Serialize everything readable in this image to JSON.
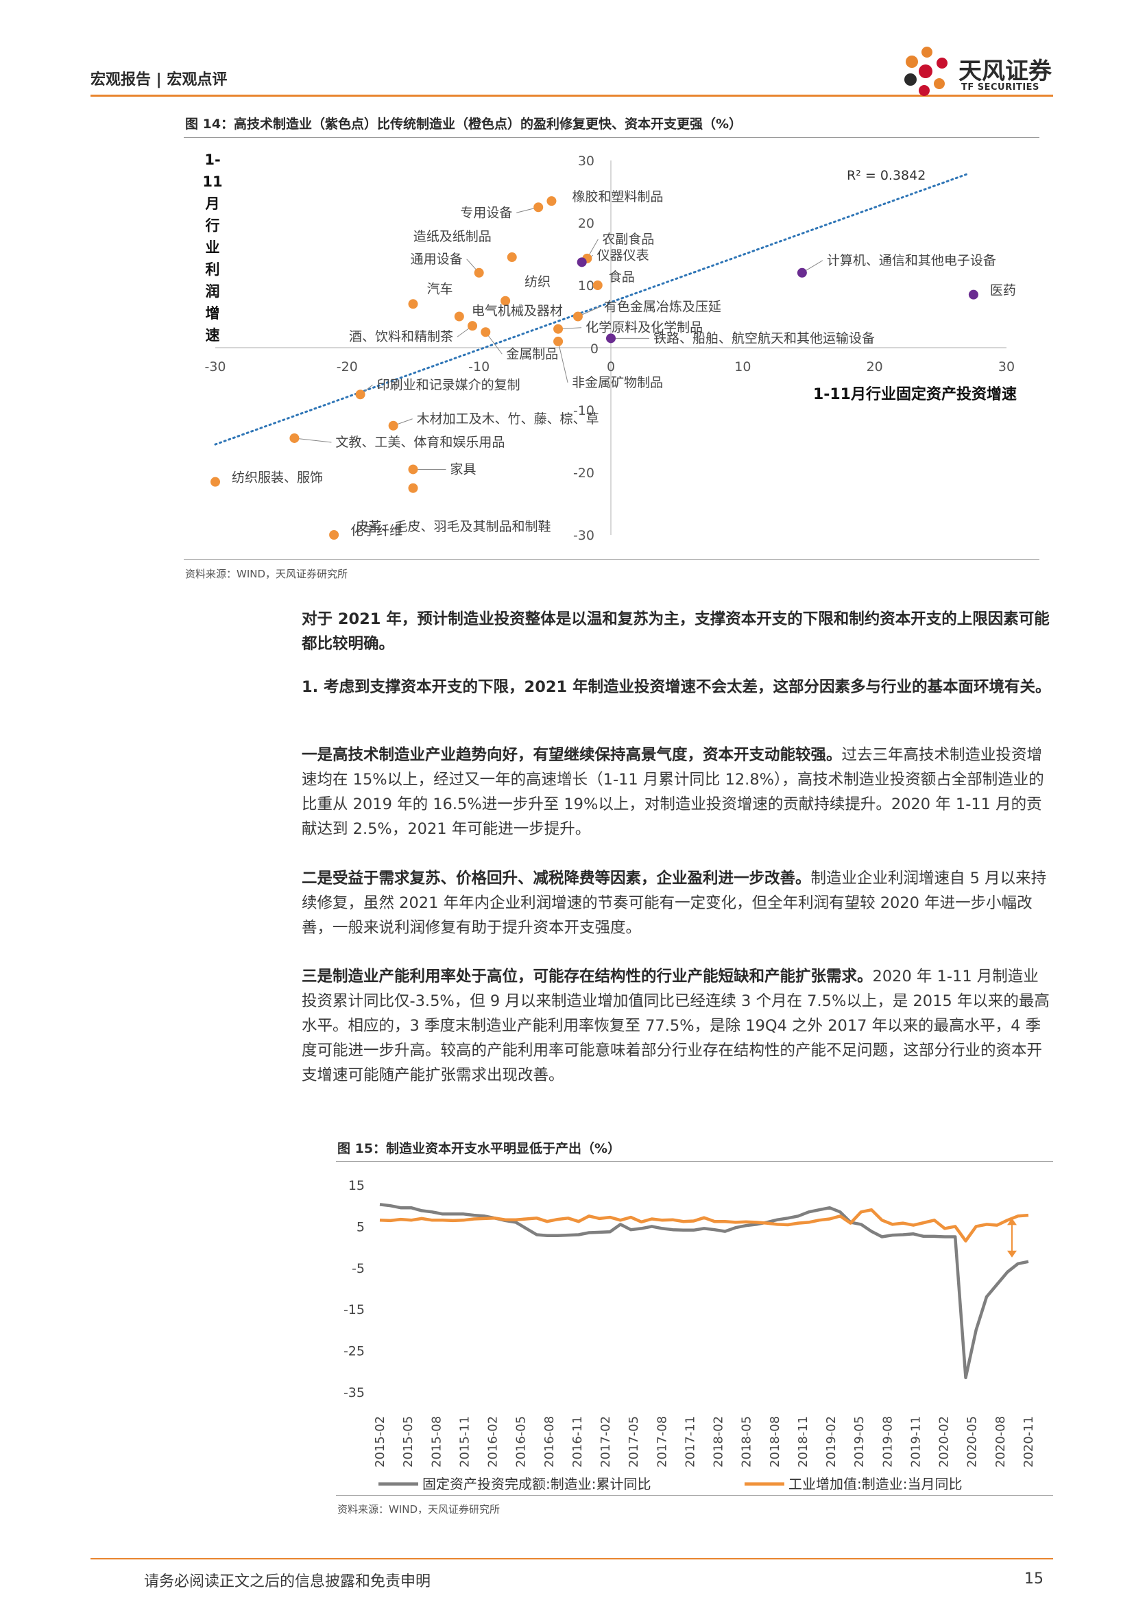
{
  "header": {
    "left": "宏观报告 | 宏观点评",
    "logo_name": "天风证券",
    "logo_sub": "TF SECURITIES"
  },
  "fig14": {
    "title": "图 14：高技术制造业（紫色点）比传统制造业（橙色点）的盈利修复更快、资本开支更强（%）",
    "source": "资料来源：WIND，天风证券研究所",
    "chart_data": {
      "type": "scatter",
      "xlabel": "1-11月行业固定资产投资增速",
      "ylabel": "1-11月行业利润增速",
      "xlim": [
        -30,
        30
      ],
      "ylim": [
        -30,
        30
      ],
      "x_ticks": [
        "-30",
        "-20",
        "-10",
        "0",
        "10",
        "20",
        "30"
      ],
      "y_ticks": [
        "30",
        "20",
        "10",
        "0",
        "-10",
        "-20",
        "-30"
      ],
      "r2_label": "R² = 0.3842",
      "trendline": {
        "x": [
          -30,
          27
        ],
        "y": [
          -15.5,
          27.8
        ]
      },
      "colors": {
        "traditional": "#f0923a",
        "high_tech": "#6a2c91",
        "trend": "#2e75b6"
      },
      "points": [
        {
          "name": "橡胶和塑料制品",
          "x": -4.5,
          "y": 23.5,
          "group": "traditional"
        },
        {
          "name": "专用设备",
          "x": -5.5,
          "y": 22.5,
          "group": "traditional"
        },
        {
          "name": "造纸及纸制品",
          "x": -7.5,
          "y": 14.5,
          "group": "traditional"
        },
        {
          "name": "农副食品",
          "x": -1.8,
          "y": 14.3,
          "group": "traditional"
        },
        {
          "name": "仪器仪表",
          "x": -2.2,
          "y": 13.7,
          "group": "high_tech"
        },
        {
          "name": "通用设备",
          "x": -10,
          "y": 12,
          "group": "traditional"
        },
        {
          "name": "食品",
          "x": -1,
          "y": 10,
          "group": "traditional"
        },
        {
          "name": "纺织",
          "x": -8,
          "y": 7.5,
          "group": "traditional"
        },
        {
          "name": "汽车",
          "x": -15,
          "y": 7,
          "group": "traditional"
        },
        {
          "name": "有色金属冶炼及压延",
          "x": -2.5,
          "y": 5,
          "group": "traditional"
        },
        {
          "name": "电气机械及器材",
          "x": -11.5,
          "y": 5,
          "group": "traditional"
        },
        {
          "name": "酒、饮料和精制茶",
          "x": -10.5,
          "y": 3.5,
          "group": "traditional"
        },
        {
          "name": "化学原料及化学制品",
          "x": -4,
          "y": 3,
          "group": "traditional"
        },
        {
          "name": "金属制品",
          "x": -9.5,
          "y": 2.5,
          "group": "traditional"
        },
        {
          "name": "铁路、船舶、航空航天和其他运输设备",
          "x": 0,
          "y": 1.5,
          "group": "high_tech"
        },
        {
          "name": "计算机、通信和其他电子设备",
          "x": 14.5,
          "y": 12,
          "group": "high_tech"
        },
        {
          "name": "医药",
          "x": 27.5,
          "y": 8.5,
          "group": "high_tech"
        },
        {
          "name": "非金属矿物制品",
          "x": -4,
          "y": 1,
          "group": "traditional"
        },
        {
          "name": "印刷业和记录媒介的复制",
          "x": -19,
          "y": -7.5,
          "group": "traditional"
        },
        {
          "name": "木材加工及木、竹、藤、棕、草",
          "x": -16.5,
          "y": -12.5,
          "group": "traditional"
        },
        {
          "name": "文教、工美、体育和娱乐用品",
          "x": -24,
          "y": -14.5,
          "group": "traditional"
        },
        {
          "name": "家具",
          "x": -15,
          "y": -19.5,
          "group": "traditional"
        },
        {
          "name": "纺织服装、服饰",
          "x": -30,
          "y": -21.5,
          "group": "traditional"
        },
        {
          "name": "皮革、毛皮、羽毛及其制品和制鞋",
          "x": -15,
          "y": -22.5,
          "group": "traditional"
        },
        {
          "name": "化学纤维",
          "x": -21,
          "y": -30,
          "group": "traditional"
        }
      ]
    }
  },
  "paragraphs": {
    "p1": "对于 2021 年，预计制造业投资整体是以温和复苏为主，支撑资本开支的下限和制约资本开支的上限因素可能都比较明确。",
    "p2": "1. 考虑到支撑资本开支的下限，2021 年制造业投资增速不会太差，这部分因素多与行业的基本面环境有关。",
    "p3_bold": "一是高技术制造业产业趋势向好，有望继续保持高景气度，资本开支动能较强。",
    "p3_rest": "过去三年高技术制造业投资增速均在 15%以上，经过又一年的高速增长（1-11 月累计同比 12.8%），高技术制造业投资额占全部制造业的比重从 2019 年的 16.5%进一步升至 19%以上，对制造业投资增速的贡献持续提升。2020 年 1-11 月的贡献达到 2.5%，2021 年可能进一步提升。",
    "p4_bold": "二是受益于需求复苏、价格回升、减税降费等因素，企业盈利进一步改善。",
    "p4_rest": "制造业企业利润增速自 5 月以来持续修复，虽然 2021 年年内企业利润增速的节奏可能有一定变化，但全年利润有望较 2020 年进一步小幅改善，一般来说利润修复有助于提升资本开支强度。",
    "p5_bold": "三是制造业产能利用率处于高位，可能存在结构性的行业产能短缺和产能扩张需求。",
    "p5_rest": "2020 年 1-11 月制造业投资累计同比仅-3.5%，但 9 月以来制造业增加值同比已经连续 3 个月在 7.5%以上，是 2015 年以来的最高水平。相应的，3 季度末制造业产能利用率恢复至 77.5%，是除 19Q4 之外 2017 年以来的最高水平，4 季度可能进一步升高。较高的产能利用率可能意味着部分行业存在结构性的产能不足问题，这部分行业的资本开支增速可能随产能扩张需求出现改善。"
  },
  "fig15": {
    "title": "图 15：制造业资本开支水平明显低于产出（%）",
    "source": "资料来源：WIND，天风证券研究所",
    "chart_data": {
      "type": "line",
      "ylim": [
        -35,
        15
      ],
      "y_ticks": [
        "15",
        "5",
        "-5",
        "-15",
        "-25",
        "-35"
      ],
      "x_tick_labels": [
        "2015-02",
        "2015-05",
        "2015-08",
        "2015-11",
        "2016-02",
        "2016-05",
        "2016-08",
        "2016-11",
        "2017-02",
        "2017-05",
        "2017-08",
        "2017-11",
        "2018-02",
        "2018-05",
        "2018-08",
        "2018-11",
        "2019-02",
        "2019-05",
        "2019-08",
        "2019-11",
        "2020-02",
        "2020-05",
        "2020-08",
        "2020-11"
      ],
      "series": [
        {
          "name": "固定资产投资完成额:制造业:累计同比",
          "color": "#7f7f7f",
          "values": [
            10.3,
            10.0,
            9.5,
            9.5,
            8.8,
            8.5,
            8.0,
            8.0,
            8.0,
            7.7,
            7.5,
            7.0,
            6.4,
            6.0,
            4.5,
            3.0,
            2.8,
            2.8,
            2.9,
            3.0,
            3.5,
            3.6,
            3.7,
            5.5,
            4.2,
            4.5,
            5.0,
            4.5,
            4.2,
            4.1,
            4.1,
            4.5,
            4.2,
            3.8,
            4.7,
            5.2,
            5.5,
            6.0,
            6.6,
            7.0,
            7.5,
            8.5,
            9.0,
            9.5,
            8.5,
            6.0,
            5.5,
            3.8,
            2.5,
            2.9,
            3.0,
            3.2,
            2.6,
            2.6,
            2.5,
            2.5,
            -31.5,
            -20,
            -12.0,
            -9.0,
            -6.0,
            -4.0,
            -3.5
          ]
        },
        {
          "name": "工业增加值:制造业:当月同比",
          "color": "#f0923a",
          "values": [
            6.5,
            6.4,
            6.7,
            6.5,
            6.9,
            6.5,
            6.5,
            6.4,
            6.5,
            6.8,
            6.9,
            7.0,
            6.6,
            6.6,
            6.8,
            7.0,
            6.2,
            6.7,
            7.0,
            6.2,
            7.5,
            6.9,
            7.2,
            6.5,
            7.2,
            6.1,
            6.8,
            6.5,
            6.6,
            6.2,
            6.3,
            7.1,
            6.2,
            6.2,
            6.0,
            6.1,
            6.0,
            5.8,
            5.5,
            5.4,
            5.8,
            6.0,
            6.5,
            6.8,
            7.5,
            5.8,
            8.5,
            9.0,
            6.5,
            5.5,
            5.8,
            5.3,
            5.9,
            6.5,
            4.5,
            5.0,
            1.5,
            5.0,
            5.5,
            5.3,
            6.5,
            7.5,
            7.7
          ]
        }
      ],
      "annotation": "gap-arrow"
    }
  },
  "footer": {
    "disclaimer": "请务必阅读正文之后的信息披露和免责申明",
    "page": "15"
  }
}
